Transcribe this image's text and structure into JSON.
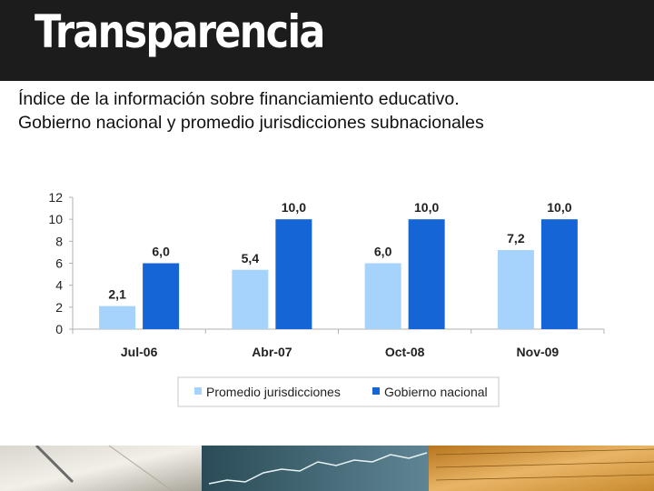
{
  "header": {
    "title": "Transparencia"
  },
  "subtitle": {
    "line1": "Índice de la información sobre financiamiento educativo.",
    "line2": "Gobierno nacional y promedio jurisdicciones subnacionales"
  },
  "colors": {
    "series_light": "#a5d3fb",
    "series_dark": "#1565d6",
    "header_bg": "#1c1c1c"
  },
  "chart_data": {
    "type": "bar",
    "categories": [
      "Jul-06",
      "Abr-07",
      "Oct-08",
      "Nov-09"
    ],
    "series": [
      {
        "name": "Promedio jurisdicciones",
        "values": [
          2.1,
          5.4,
          6.0,
          7.2
        ],
        "labels": [
          "2,1",
          "5,4",
          "6,0",
          "7,2"
        ],
        "color": "#a5d3fb"
      },
      {
        "name": "Gobierno nacional",
        "values": [
          6.0,
          10.0,
          10.0,
          10.0
        ],
        "labels": [
          "6,0",
          "10,0",
          "10,0",
          "10,0"
        ],
        "color": "#1565d6"
      }
    ],
    "yticks": [
      "0",
      "2",
      "4",
      "6",
      "8",
      "10",
      "12"
    ],
    "ylim": [
      0,
      12
    ],
    "legend_position": "bottom"
  }
}
